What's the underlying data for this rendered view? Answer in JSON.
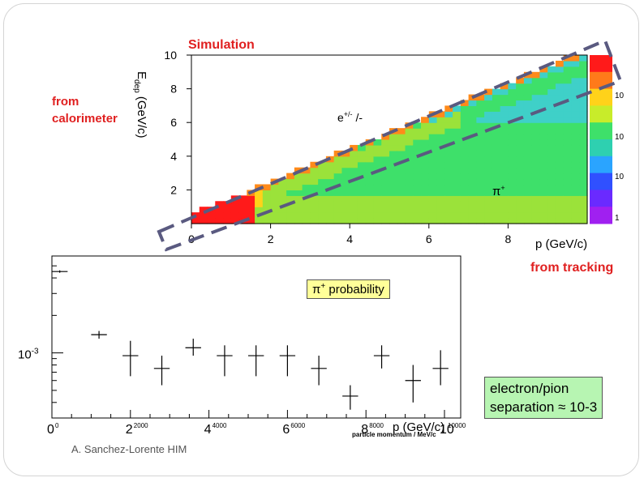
{
  "slide": {
    "simulation_label": "Simulation",
    "from_calorimeter": "from\ncalorimeter",
    "from_tracking": "from tracking",
    "credit": "A. Sanchez-Lorente HIM",
    "electron_pion_box": "electron/pion\nseparation ≈ 10-3",
    "colors": {
      "red_text": "#e02020",
      "box_green": "#b7f5b2",
      "box_yellow": "#ffff99",
      "dashed": "#5a5a80"
    }
  },
  "chart_data": [
    {
      "type": "heatmap",
      "title": "Simulation",
      "xlabel": "p (GeV/c)",
      "ylabel": "Edep (GeV/c)",
      "ylabel_parts": {
        "main": "E",
        "sub": "dep",
        "unit": " (GeV/c)"
      },
      "xlim": [
        0,
        10
      ],
      "ylim": [
        0,
        10
      ],
      "x_ticks": [
        "0",
        "2",
        "4",
        "6",
        "8"
      ],
      "y_ticks": [
        "2",
        "4",
        "6",
        "8",
        "10"
      ],
      "annotations": [
        "e+/- /-",
        "π+"
      ],
      "annotation_parts": {
        "electron": "e",
        "electron_sup": "+/-",
        "electron_tail": "/-",
        "pion": "π",
        "pion_sup": "+"
      },
      "colorbar_labels": [
        "10",
        "10",
        "10",
        "1"
      ],
      "colorbar_scale": "log",
      "bands": [
        {
          "name": "e+/-",
          "relation": "Edep ≈ p",
          "x_range": [
            0,
            10
          ]
        },
        {
          "name": "π+",
          "relation": "Edep < p",
          "x_range": [
            0,
            10
          ]
        }
      ]
    },
    {
      "type": "scatter",
      "title": "π+ probability",
      "title_parts": {
        "pi": "π",
        "sup": "+",
        "rest": " probability"
      },
      "xlabel": "particle momentum / MeV/c",
      "xlabel_overlay": "p (GeV/c)",
      "ylabel": "",
      "yscale": "log",
      "x_major_labels": [
        "0",
        "2",
        "4",
        "6",
        "8",
        "10"
      ],
      "x_minor_labels": [
        "0",
        "2000",
        "4000",
        "6000",
        "8000",
        "10000"
      ],
      "y_tick_label": "10-3",
      "y_tick_parts": {
        "base": "10",
        "exp": "-3"
      },
      "xlim": [
        0,
        10000
      ],
      "points": [
        {
          "x": 200,
          "xerr": 200,
          "y": 0.0045,
          "yerr_up": 0.0001,
          "yerr_down": 0.0001
        },
        {
          "x": 1200,
          "xerr": 200,
          "y": 0.0014,
          "yerr_up": 0.0001,
          "yerr_down": 0.0001
        },
        {
          "x": 2000,
          "xerr": 200,
          "y": 0.00095,
          "yerr_up": 0.0003,
          "yerr_down": 0.0003
        },
        {
          "x": 2800,
          "xerr": 200,
          "y": 0.00075,
          "yerr_up": 0.0002,
          "yerr_down": 0.0002
        },
        {
          "x": 3600,
          "xerr": 200,
          "y": 0.0011,
          "yerr_up": 0.0002,
          "yerr_down": 0.00015
        },
        {
          "x": 4400,
          "xerr": 200,
          "y": 0.00095,
          "yerr_up": 0.0002,
          "yerr_down": 0.0003
        },
        {
          "x": 5200,
          "xerr": 200,
          "y": 0.00095,
          "yerr_up": 0.0002,
          "yerr_down": 0.0003
        },
        {
          "x": 6000,
          "xerr": 200,
          "y": 0.00095,
          "yerr_up": 0.0002,
          "yerr_down": 0.0003
        },
        {
          "x": 6800,
          "xerr": 200,
          "y": 0.00075,
          "yerr_up": 0.0002,
          "yerr_down": 0.0002
        },
        {
          "x": 7600,
          "xerr": 200,
          "y": 0.00045,
          "yerr_up": 0.0001,
          "yerr_down": 0.0001
        },
        {
          "x": 8400,
          "xerr": 200,
          "y": 0.00095,
          "yerr_up": 0.0002,
          "yerr_down": 0.0002
        },
        {
          "x": 9200,
          "xerr": 200,
          "y": 0.0006,
          "yerr_up": 0.0002,
          "yerr_down": 0.0002
        },
        {
          "x": 9900,
          "xerr": 200,
          "y": 0.00075,
          "yerr_up": 0.0003,
          "yerr_down": 0.0002
        }
      ]
    }
  ]
}
